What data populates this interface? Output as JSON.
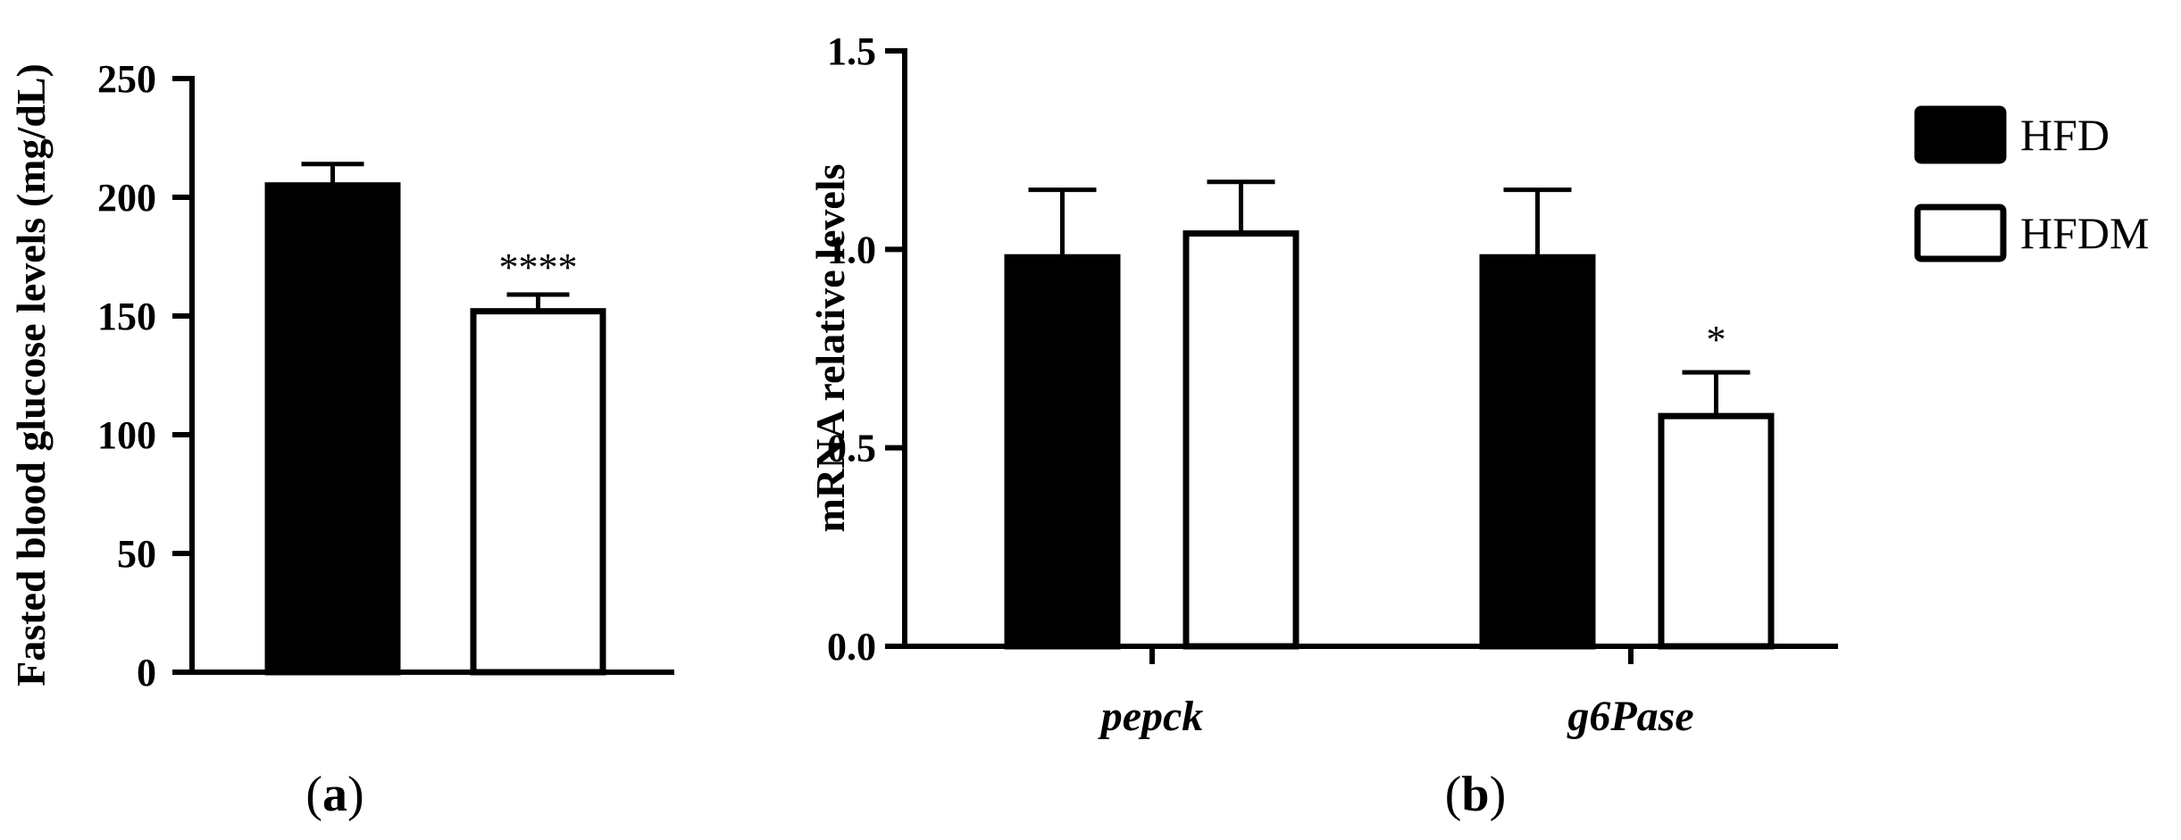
{
  "chart_data": [
    {
      "type": "bar",
      "panel_label": "a",
      "ylabel": "Fasted blood glucose levels (mg/dL)",
      "ylim": [
        0,
        250
      ],
      "yticks": [
        "0",
        "50",
        "100",
        "150",
        "200",
        "250"
      ],
      "categories": [
        "HFD",
        "HFDM"
      ],
      "values": [
        205,
        152
      ],
      "errors": [
        9,
        7
      ],
      "significance": [
        "",
        "****"
      ],
      "fills": [
        "#000000",
        "#ffffff"
      ]
    },
    {
      "type": "bar",
      "panel_label": "b",
      "ylabel": "mRNA relative levels",
      "ylim": [
        0,
        1.5
      ],
      "yticks": [
        "0.0",
        "0.5",
        "1.0",
        "1.5"
      ],
      "categories": [
        "pepck",
        "g6Pase"
      ],
      "series": [
        {
          "name": "HFD",
          "values": [
            0.98,
            0.98
          ],
          "errors": [
            0.17,
            0.17
          ],
          "significance": [
            "",
            ""
          ],
          "fill": "#000000"
        },
        {
          "name": "HFDM",
          "values": [
            1.04,
            0.58
          ],
          "errors": [
            0.13,
            0.11
          ],
          "significance": [
            "",
            "*"
          ],
          "fill": "#ffffff"
        }
      ],
      "legend_position": "top-right"
    }
  ]
}
